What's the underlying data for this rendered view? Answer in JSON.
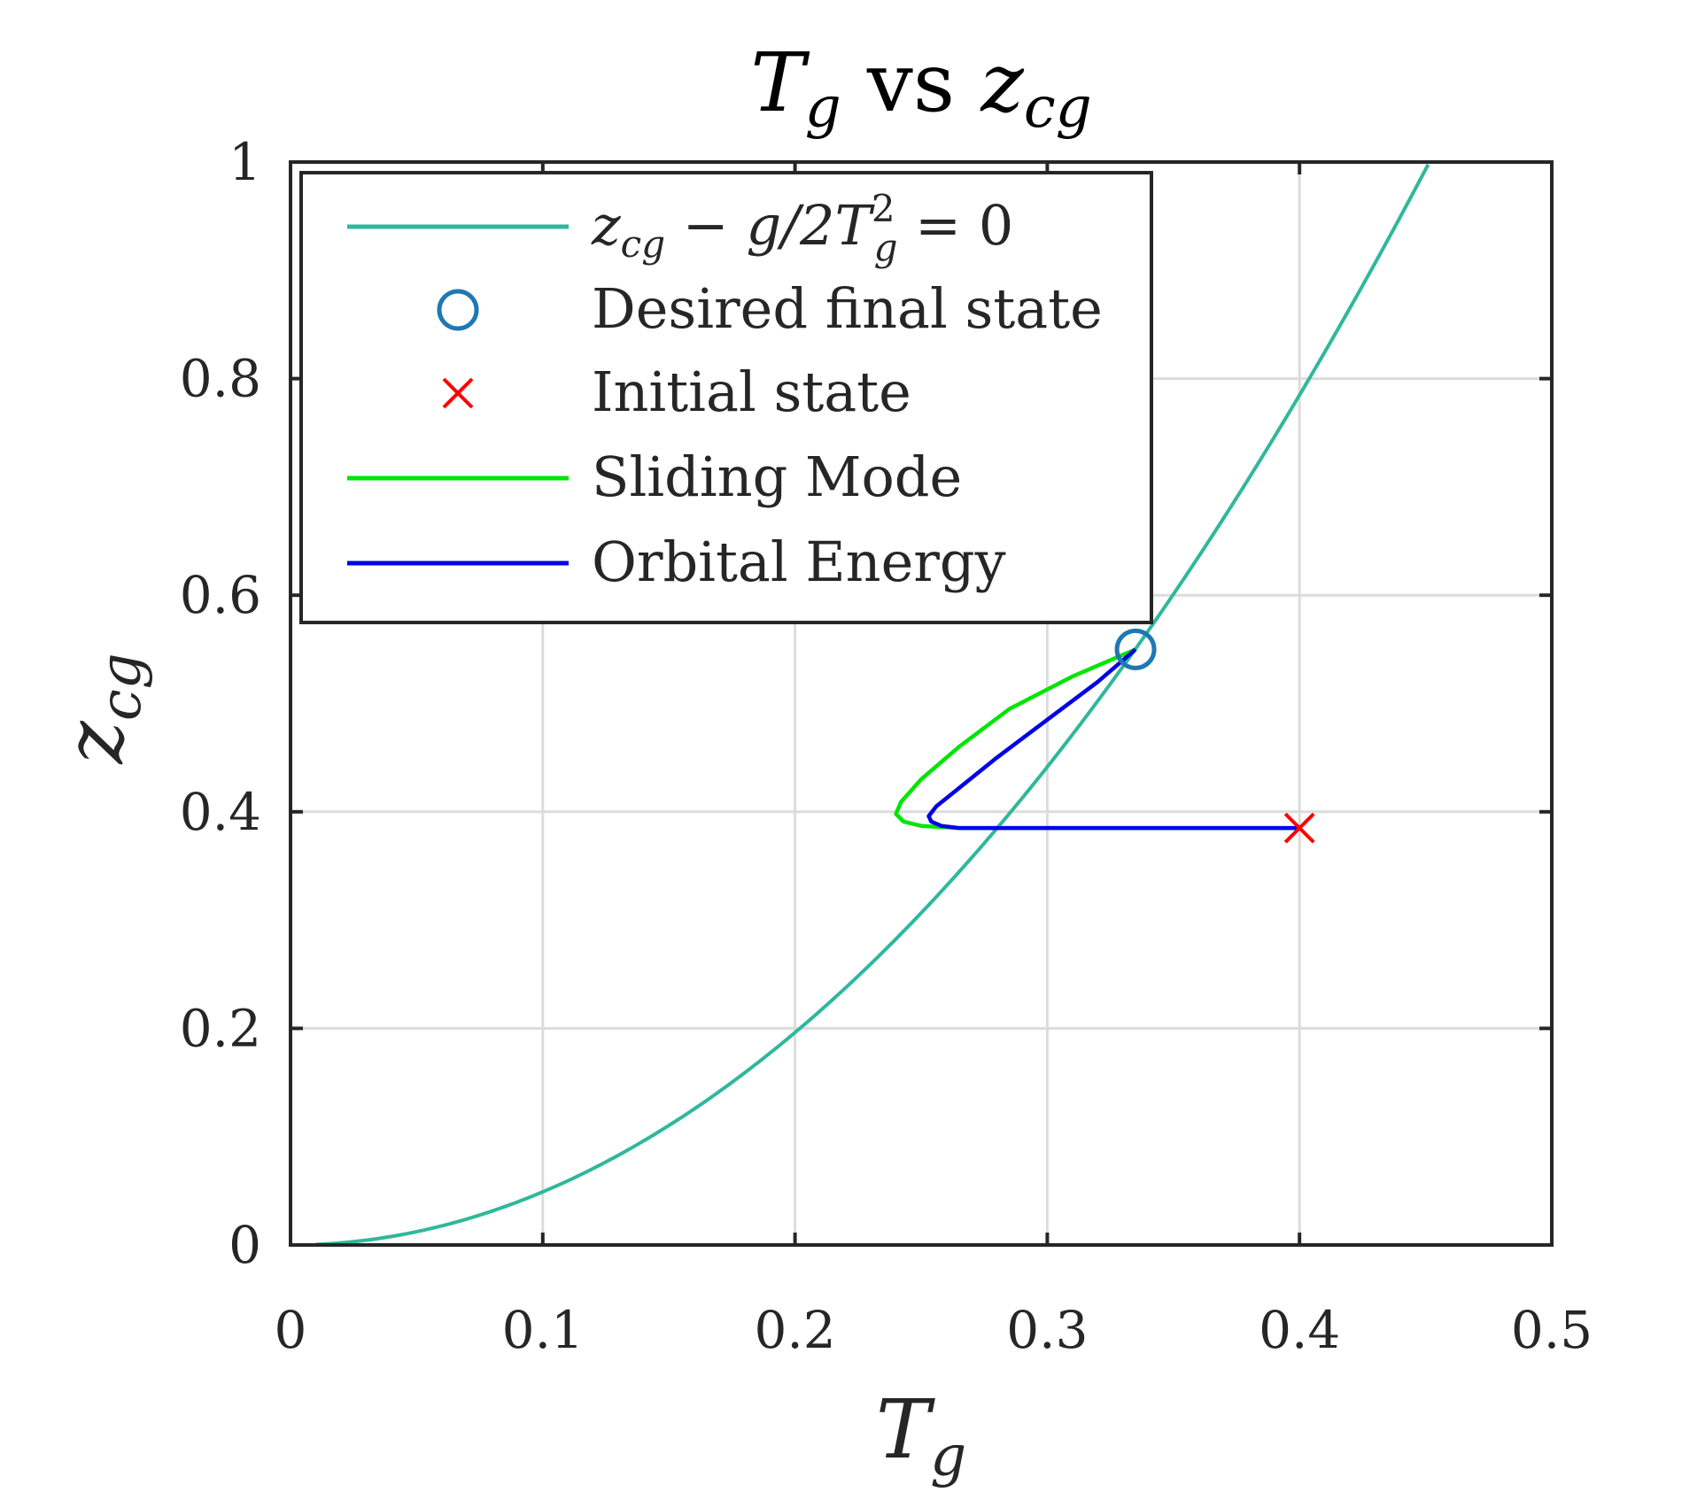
{
  "chart_data": {
    "type": "line",
    "title": {
      "main": "T",
      "main_sub": "g",
      "middle": " vs ",
      "var": "z",
      "var_sub": "cg"
    },
    "xlabel": {
      "main": "T",
      "sub": "g"
    },
    "ylabel": {
      "main": "z",
      "sub": "cg"
    },
    "xlim": [
      0,
      0.5
    ],
    "ylim": [
      0,
      1
    ],
    "xticks": [
      0,
      0.1,
      0.2,
      0.3,
      0.4,
      0.5
    ],
    "yticks": [
      0,
      0.2,
      0.4,
      0.6,
      0.8,
      1
    ],
    "xtick_labels": [
      "0",
      "0.1",
      "0.2",
      "0.3",
      "0.4",
      "0.5"
    ],
    "ytick_labels": [
      "0",
      "0.2",
      "0.4",
      "0.6",
      "0.8",
      "1"
    ],
    "grid": true,
    "legend_position": "top-left",
    "legend": [
      {
        "label": {
          "a": "z",
          "a_sub": "cg",
          "b": " − g/2T",
          "b_sup": "2",
          "b_sub": "g",
          "c": " = 0"
        },
        "color": "#2fb89b",
        "kind": "line"
      },
      {
        "label": "Desired final state",
        "color": "#1f77b4",
        "kind": "circle"
      },
      {
        "label": "Initial state",
        "color": "#ff0000",
        "kind": "cross"
      },
      {
        "label": "Sliding Mode",
        "color": "#00e600",
        "kind": "line"
      },
      {
        "label": "Orbital Energy",
        "color": "#0000e6",
        "kind": "line"
      }
    ],
    "series": [
      {
        "name": "Sliding Mode",
        "color": "#00e600",
        "x": [
          0.4,
          0.35,
          0.3,
          0.265,
          0.25,
          0.243,
          0.24,
          0.242,
          0.25,
          0.265,
          0.285,
          0.31,
          0.335
        ],
        "y": [
          0.385,
          0.385,
          0.385,
          0.385,
          0.387,
          0.391,
          0.398,
          0.409,
          0.43,
          0.46,
          0.495,
          0.525,
          0.55
        ]
      },
      {
        "name": "Orbital Energy",
        "color": "#0000e6",
        "x": [
          0.4,
          0.35,
          0.3,
          0.265,
          0.258,
          0.254,
          0.253,
          0.256,
          0.264,
          0.28,
          0.3,
          0.32,
          0.335
        ],
        "y": [
          0.385,
          0.385,
          0.385,
          0.385,
          0.387,
          0.391,
          0.396,
          0.405,
          0.42,
          0.45,
          0.485,
          0.52,
          0.55
        ]
      }
    ],
    "curve": {
      "g": 9.81,
      "x_max": 0.451,
      "color": "#2fb89b"
    },
    "points": {
      "desired_final_state": {
        "x": 0.335,
        "y": 0.55,
        "color": "#1f77b4"
      },
      "initial_state": {
        "x": 0.4,
        "y": 0.385,
        "color": "#ff0000"
      }
    }
  }
}
